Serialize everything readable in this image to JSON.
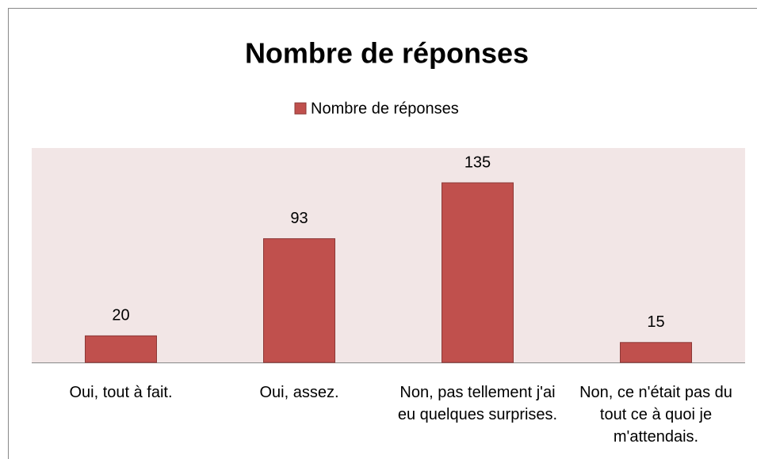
{
  "chart_data": {
    "type": "bar",
    "title": "Nombre de réponses",
    "categories": [
      "Oui, tout à fait.",
      "Oui, assez.",
      "Non, pas tellement j'ai eu quelques surprises.",
      "Non, ce n'était pas du tout ce à quoi je m'attendais."
    ],
    "series": [
      {
        "name": "Nombre de réponses",
        "color": "#c0504d",
        "values": [
          20,
          93,
          135,
          15
        ]
      }
    ],
    "legend": "top",
    "data_labels": true
  }
}
